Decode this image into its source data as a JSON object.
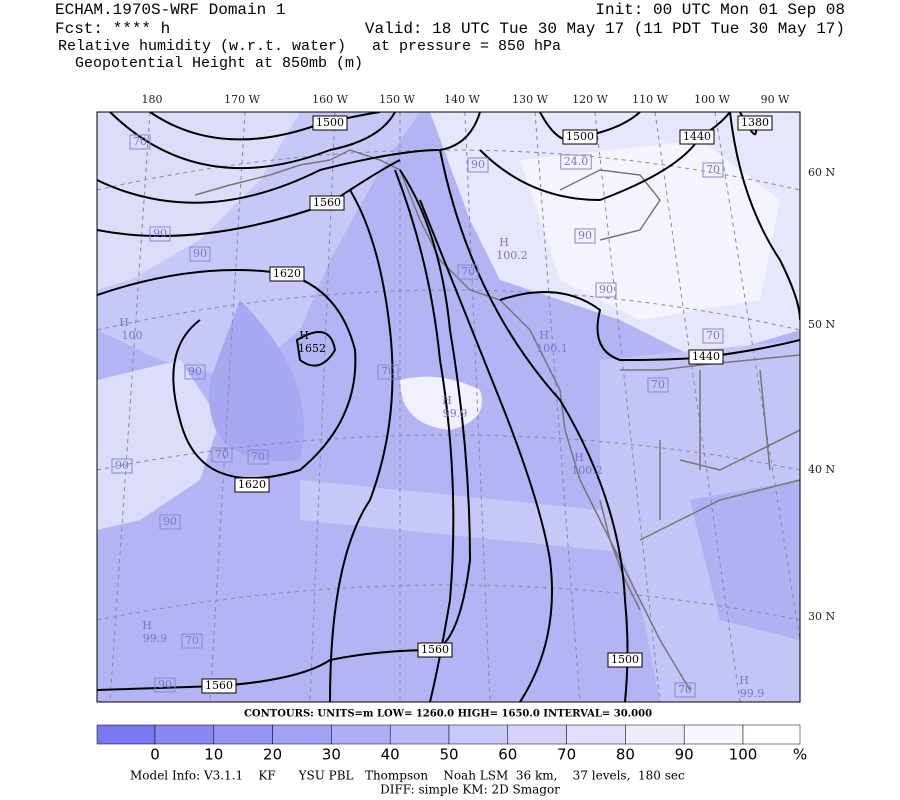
{
  "header": {
    "model": "ECHAM.1970S-WRF Domain 1",
    "forecast": "Fcst: **** h",
    "field1": "Relative humidity (w.r.t. water)",
    "field2": "Geopotential Height at 850mb (m)",
    "init": "Init: 00 UTC Mon 01 Sep 08",
    "valid": "Valid: 18 UTC Tue 30 May 17 (11 PDT Tue 30 May 17)",
    "pressure": "at pressure =  850 hPa"
  },
  "map": {
    "lon_labels": [
      "180",
      "170 W",
      "160 W",
      "150 W",
      "140 W",
      "130 W",
      "120 W",
      "110 W",
      "100 W",
      "90 W"
    ],
    "lat_labels": [
      "60 N",
      "50 N",
      "40 N",
      "30 N"
    ],
    "height_labels": [
      "1500",
      "1500",
      "1440",
      "1380",
      "1560",
      "1620",
      "1440",
      "1620",
      "1560",
      "1500",
      "1560"
    ],
    "highs": [
      {
        "symbol": "H",
        "value": "1652"
      },
      {
        "symbol": "H",
        "value": "100"
      },
      {
        "symbol": "H",
        "value": "100.2"
      },
      {
        "symbol": "H",
        "value": "100.1"
      },
      {
        "symbol": "H",
        "value": "99.9"
      },
      {
        "symbol": "H",
        "value": "100.2"
      },
      {
        "symbol": "H",
        "value": "99.9"
      },
      {
        "symbol": "H",
        "value": "99.9"
      }
    ],
    "rh_labels": [
      "70",
      "90",
      "90",
      "90",
      "24.0",
      "90",
      "70",
      "90",
      "70",
      "90",
      "70",
      "70",
      "70",
      "90",
      "70",
      "70",
      "90",
      "70",
      "90",
      "70"
    ]
  },
  "contour_info": "CONTOURS:  UNITS=m  LOW=  1260.0  HIGH=  1650.0  INTERVAL=  30.000",
  "colorbar": {
    "labels": [
      "0",
      "10",
      "20",
      "30",
      "40",
      "50",
      "60",
      "70",
      "80",
      "90",
      "100"
    ],
    "unit": "%"
  },
  "footer": {
    "model_info": "Model Info: V3.1.1    KF      YSU PBL   Thompson    Noah LSM  36 km,    37 levels,  180 sec",
    "diff": "DIFF: simple KM: 2D Smagor"
  }
}
